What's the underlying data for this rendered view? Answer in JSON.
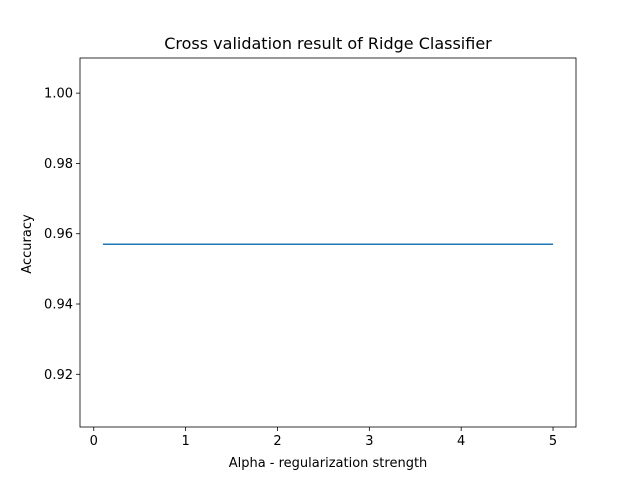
{
  "chart_data": {
    "type": "line",
    "title": "Cross validation result of Ridge Classifier",
    "xlabel": "Alpha - regularization strength",
    "ylabel": "Accuracy",
    "xlim": [
      -0.15,
      5.25
    ],
    "ylim": [
      0.905,
      1.01
    ],
    "xticks": [
      0,
      1,
      2,
      3,
      4,
      5
    ],
    "xtick_labels": [
      "0",
      "1",
      "2",
      "3",
      "4",
      "5"
    ],
    "yticks": [
      0.92,
      0.94,
      0.96,
      0.98,
      1.0
    ],
    "ytick_labels": [
      "0.92",
      "0.94",
      "0.96",
      "0.98",
      "1.00"
    ],
    "grid": false,
    "series": [
      {
        "color": "#1f77b4",
        "x": [
          0.1,
          5.0
        ],
        "y": [
          0.957,
          0.957
        ]
      }
    ]
  }
}
